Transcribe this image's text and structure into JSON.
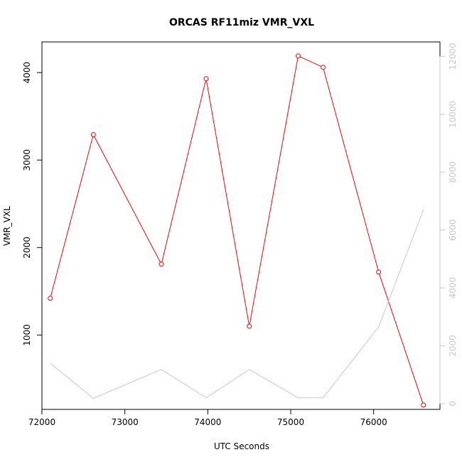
{
  "chart_data": {
    "type": "line",
    "title": "ORCAS RF11miz VMR_VXL",
    "xlabel": "UTC Seconds",
    "ylabel": "VMR_VXL",
    "xlim": [
      72000,
      76800
    ],
    "ylim": [
      150,
      4350
    ],
    "y2lim": [
      -200,
      12500
    ],
    "x_ticks": [
      72000,
      73000,
      74000,
      75000,
      76000
    ],
    "y_ticks": [
      1000,
      2000,
      3000,
      4000
    ],
    "y2_ticks": [
      0,
      2000,
      4000,
      6000,
      8000,
      10000,
      12000
    ],
    "grid": false,
    "series": [
      {
        "axis": "left",
        "color": "#ff0000",
        "markers": true,
        "x": [
          72100,
          72620,
          73440,
          73980,
          74500,
          75090,
          75390,
          76060,
          76600
        ],
        "y": [
          1420,
          3290,
          1810,
          3930,
          1100,
          4190,
          4060,
          1720,
          200
        ]
      },
      {
        "axis": "right",
        "color": "#c8c8c8",
        "markers": false,
        "x": [
          72100,
          72620,
          73440,
          73980,
          74500,
          75090,
          75390,
          76060,
          76600
        ],
        "y": [
          1400,
          180,
          1180,
          200,
          1180,
          200,
          200,
          2650,
          6700
        ]
      }
    ]
  }
}
